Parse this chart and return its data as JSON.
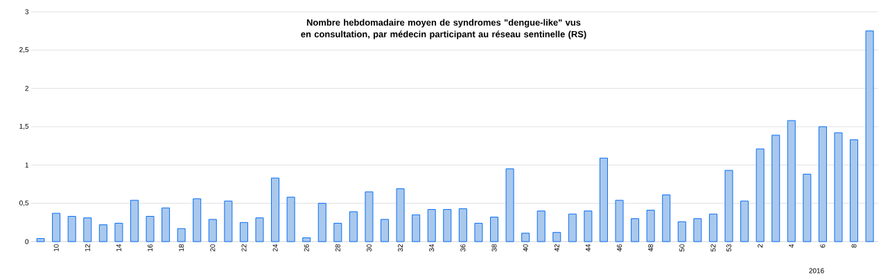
{
  "chart_data": {
    "type": "bar",
    "title": "Nombre hebdomadaire moyen de syndromes \"dengue-like\" vus en consultation, par médecin participant au réseau sentinelle (RS)",
    "categories": [
      null,
      "10",
      null,
      "12",
      null,
      "14",
      null,
      "16",
      null,
      "18",
      null,
      "20",
      null,
      "22",
      null,
      "24",
      null,
      "26",
      null,
      "28",
      null,
      "30",
      null,
      "32",
      null,
      "34",
      null,
      "36",
      null,
      "38",
      null,
      "40",
      null,
      "42",
      null,
      "44",
      null,
      "46",
      null,
      "48",
      null,
      "50",
      null,
      "52",
      "53",
      null,
      "2",
      null,
      "4",
      null,
      "6",
      null,
      "8",
      null
    ],
    "values": [
      0.04,
      0.37,
      0.33,
      0.31,
      0.22,
      0.24,
      0.54,
      0.33,
      0.44,
      0.17,
      0.56,
      0.29,
      0.53,
      0.25,
      0.31,
      0.83,
      0.58,
      0.05,
      0.5,
      0.24,
      0.39,
      0.65,
      0.29,
      0.69,
      0.35,
      0.42,
      0.42,
      0.43,
      0.24,
      0.32,
      0.95,
      0.11,
      0.4,
      0.12,
      0.36,
      0.4,
      1.09,
      0.54,
      0.3,
      0.41,
      0.61,
      0.26,
      0.3,
      0.36,
      0.93,
      0.53,
      1.21,
      1.39,
      1.58,
      0.88,
      1.5,
      1.42,
      1.33,
      2.75
    ],
    "color": "#a9c8ec",
    "ylim": [
      0,
      3
    ],
    "yticks": [
      0,
      {
        "value": 0.5,
        "label": "0,5"
      },
      1,
      {
        "value": 1.5,
        "label": "1,5"
      },
      2,
      {
        "value": 2.5,
        "label": "2,5"
      },
      3
    ],
    "grid": "y",
    "annotations": [
      "2016"
    ]
  }
}
